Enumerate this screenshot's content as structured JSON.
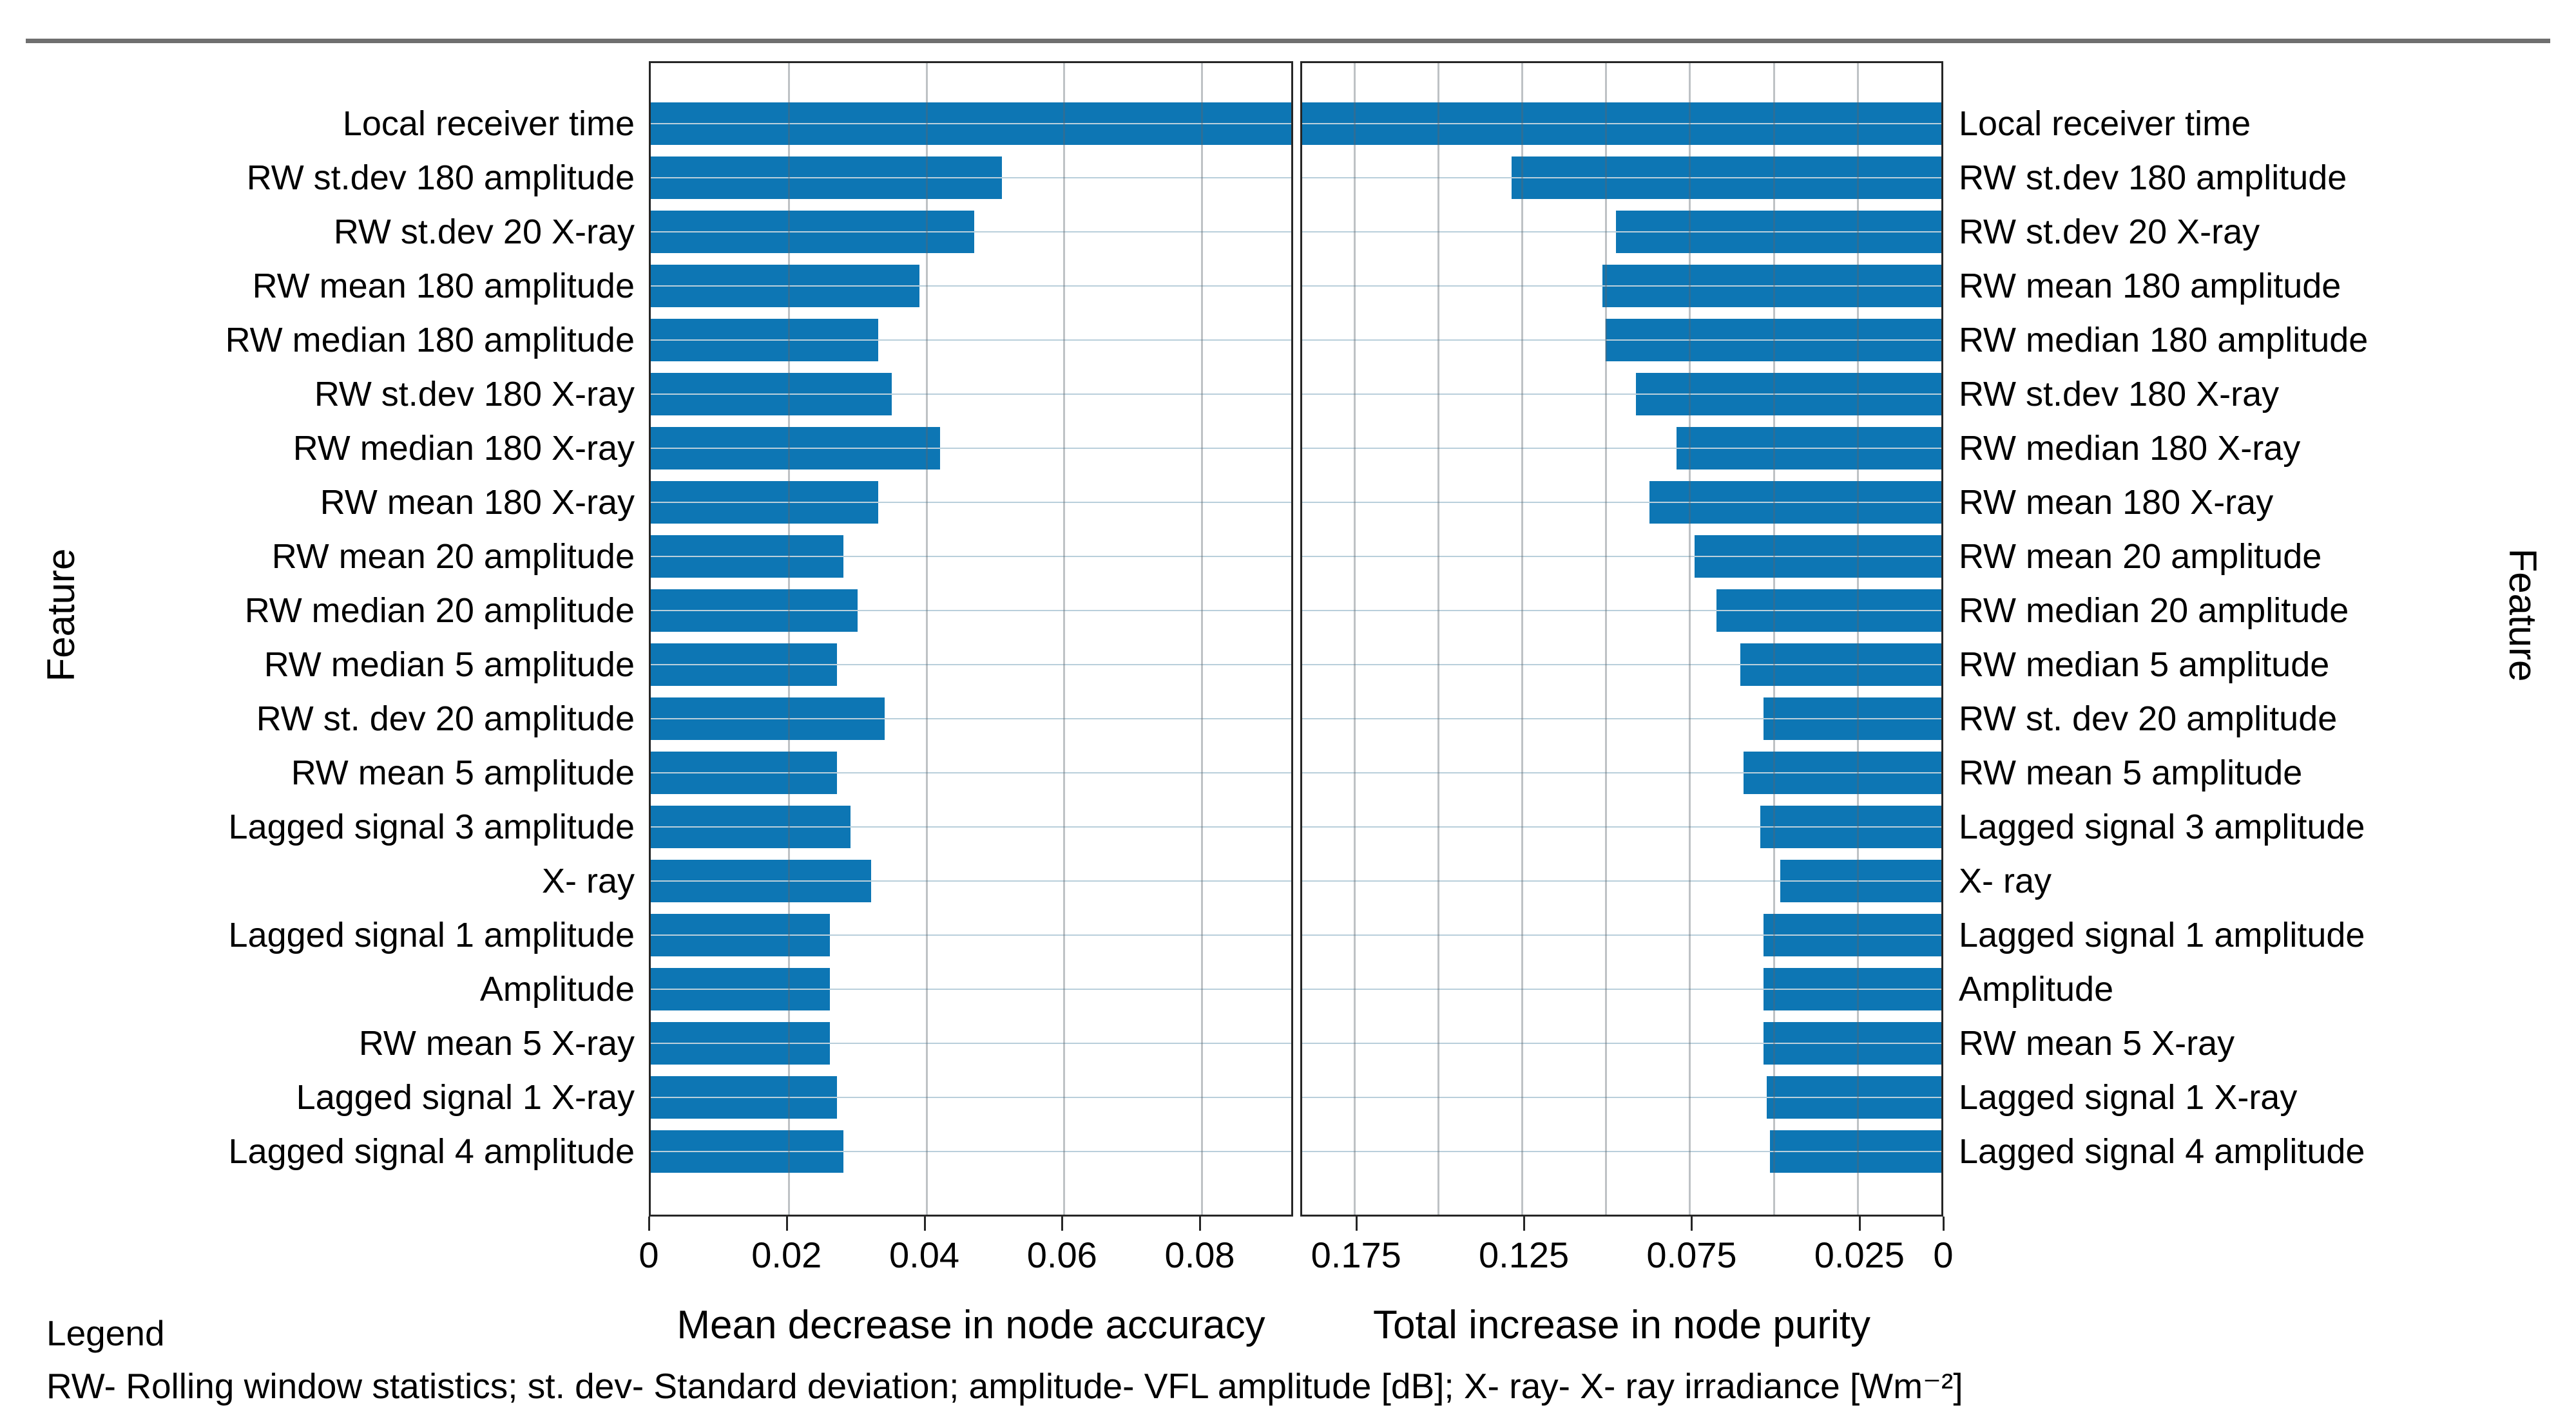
{
  "figure": {
    "background": "#ffffff",
    "top_rule_color": "#6f6f6f",
    "bar_color": "#0d76b4"
  },
  "ylabel_left": "Feature",
  "ylabel_right": "Feature",
  "legend": {
    "title": "Legend",
    "text": "RW- Rolling window statistics; st. dev- Standard deviation; amplitude- VFL amplitude [dB]; X- ray- X- ray irradiance [Wm⁻²]"
  },
  "features": [
    "Local receiver time",
    "RW st.dev 180 amplitude",
    "RW st.dev 20 X-ray",
    "RW mean 180 amplitude",
    "RW median 180 amplitude",
    "RW st.dev 180 X-ray",
    "RW median 180 X-ray",
    "RW mean 180 X-ray",
    "RW mean 20 amplitude",
    "RW median 20 amplitude",
    "RW median 5 amplitude",
    "RW st. dev 20 amplitude",
    "RW mean 5 amplitude",
    "Lagged signal 3 amplitude",
    "X- ray",
    "Lagged signal 1 amplitude",
    "Amplitude",
    "RW mean 5 X-ray",
    "Lagged signal 1 X-ray",
    "Lagged signal 4 amplitude"
  ],
  "chart_data": [
    {
      "type": "bar",
      "orientation": "horizontal",
      "panel": "left",
      "xlabel": "Mean decrease in node accuracy",
      "ylabel": "Feature",
      "axis_reversed": false,
      "xlim": [
        0,
        0.093
      ],
      "xticks": [
        0,
        0.02,
        0.04,
        0.06,
        0.08
      ],
      "xtick_labels": [
        "0",
        "0.02",
        "0.04",
        "0.06",
        "0.08"
      ],
      "grid_xticks": [
        0.02,
        0.04,
        0.06,
        0.08
      ],
      "grid": "on",
      "bar_color": "#0d76b4",
      "values": [
        0.093,
        0.051,
        0.047,
        0.039,
        0.033,
        0.035,
        0.042,
        0.033,
        0.028,
        0.03,
        0.027,
        0.034,
        0.027,
        0.029,
        0.032,
        0.026,
        0.026,
        0.026,
        0.027,
        0.028
      ],
      "note": "Top bar (Local receiver time) is clipped at the axis maximum"
    },
    {
      "type": "bar",
      "orientation": "horizontal",
      "panel": "right",
      "xlabel": "Total increase in node purity",
      "ylabel": "Feature",
      "axis_reversed": true,
      "xlim": [
        0,
        0.1905
      ],
      "xticks": [
        0.175,
        0.125,
        0.075,
        0.025,
        0
      ],
      "xtick_labels": [
        "0.175",
        "0.125",
        "0.075",
        "0.025",
        "0"
      ],
      "grid_xticks": [
        0.025,
        0.05,
        0.075,
        0.1,
        0.125,
        0.15,
        0.175
      ],
      "grid": "on",
      "bar_color": "#0d76b4",
      "values": [
        0.1905,
        0.128,
        0.097,
        0.101,
        0.1,
        0.091,
        0.079,
        0.087,
        0.0735,
        0.067,
        0.06,
        0.053,
        0.059,
        0.054,
        0.048,
        0.053,
        0.053,
        0.053,
        0.052,
        0.051
      ],
      "note": "Top bar (Local receiver time) is clipped at the axis maximum; axis runs right-to-left"
    }
  ]
}
